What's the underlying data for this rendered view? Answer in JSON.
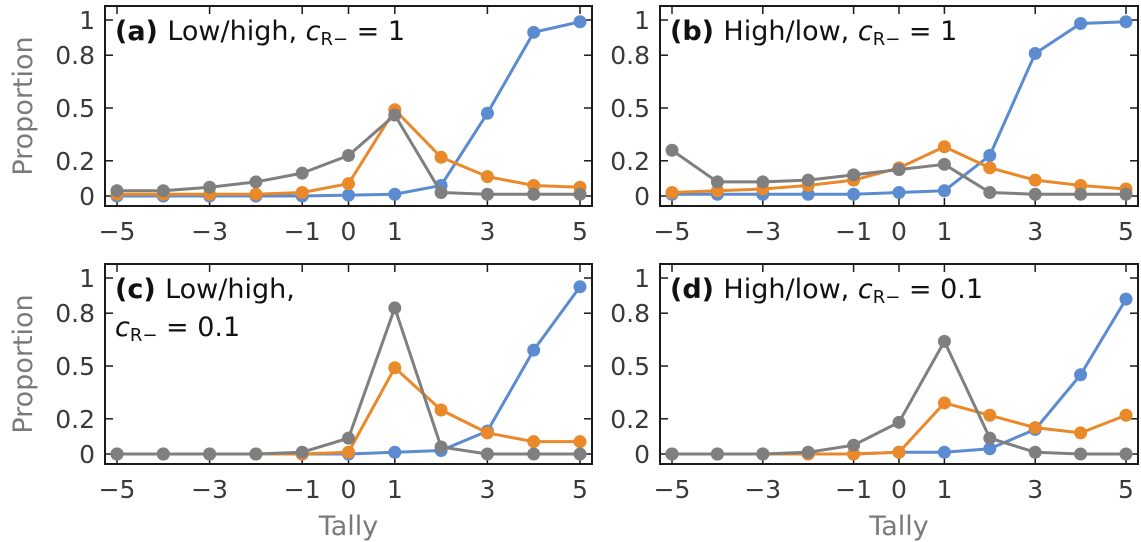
{
  "colors": {
    "blue": "#5b8bd0",
    "orange": "#e9892a",
    "gray": "#7f7f7f"
  },
  "chart_data": [
    {
      "type": "line",
      "title_tag": "(a)",
      "title_text": "Low/high, ",
      "title_sym": "c",
      "title_sub": "R−",
      "title_eq": " = 1",
      "title_line2": "",
      "x": [
        -5,
        -4,
        -3,
        -2,
        -1,
        0,
        1,
        2,
        3,
        4,
        5
      ],
      "xticks": [
        -5,
        -3,
        -1,
        0,
        1,
        3,
        5
      ],
      "xtick_labels": [
        "−5",
        "−3",
        "−1",
        "0",
        "1",
        "3",
        "5"
      ],
      "yticks": [
        0,
        0.2,
        0.5,
        0.8,
        1
      ],
      "ytick_labels": [
        "0",
        "0.2",
        "0.5",
        "0.8",
        "1"
      ],
      "ylim": [
        0,
        1
      ],
      "xlabel": "",
      "ylabel": "Proportion",
      "series": [
        {
          "color": "blue",
          "values": [
            0,
            0,
            0,
            0,
            0,
            0.005,
            0.01,
            0.06,
            0.47,
            0.93,
            0.99
          ]
        },
        {
          "color": "orange",
          "values": [
            0.01,
            0.01,
            0.01,
            0.01,
            0.02,
            0.07,
            0.49,
            0.22,
            0.11,
            0.06,
            0.05
          ]
        },
        {
          "color": "gray",
          "values": [
            0.03,
            0.03,
            0.05,
            0.08,
            0.13,
            0.23,
            0.46,
            0.02,
            0.01,
            0.01,
            0.01
          ]
        }
      ]
    },
    {
      "type": "line",
      "title_tag": "(b)",
      "title_text": "High/low, ",
      "title_sym": "c",
      "title_sub": "R−",
      "title_eq": " = 1",
      "title_line2": "",
      "x": [
        -5,
        -4,
        -3,
        -2,
        -1,
        0,
        1,
        2,
        3,
        4,
        5
      ],
      "xticks": [
        -5,
        -3,
        -1,
        0,
        1,
        3,
        5
      ],
      "xtick_labels": [
        "−5",
        "−3",
        "−1",
        "0",
        "1",
        "3",
        "5"
      ],
      "yticks": [
        0,
        0.2,
        0.5,
        0.8,
        1
      ],
      "ytick_labels": [
        "0",
        "0.2",
        "0.5",
        "0.8",
        "1"
      ],
      "ylim": [
        0,
        1
      ],
      "xlabel": "",
      "ylabel": "",
      "series": [
        {
          "color": "blue",
          "values": [
            0.01,
            0.01,
            0.01,
            0.01,
            0.01,
            0.02,
            0.03,
            0.23,
            0.81,
            0.98,
            0.99
          ]
        },
        {
          "color": "orange",
          "values": [
            0.02,
            0.03,
            0.04,
            0.06,
            0.09,
            0.16,
            0.28,
            0.16,
            0.09,
            0.06,
            0.04
          ]
        },
        {
          "color": "gray",
          "values": [
            0.26,
            0.08,
            0.08,
            0.09,
            0.12,
            0.15,
            0.18,
            0.02,
            0.01,
            0.01,
            0.01
          ]
        }
      ]
    },
    {
      "type": "line",
      "title_tag": "(c)",
      "title_text": "Low/high,",
      "title_sym": "",
      "title_sub": "",
      "title_eq": "",
      "title_line2_sym": "c",
      "title_line2_sub": "R−",
      "title_line2": " = 0.1",
      "x": [
        -5,
        -4,
        -3,
        -2,
        -1,
        0,
        1,
        2,
        3,
        4,
        5
      ],
      "xticks": [
        -5,
        -3,
        -1,
        0,
        1,
        3,
        5
      ],
      "xtick_labels": [
        "−5",
        "−3",
        "−1",
        "0",
        "1",
        "3",
        "5"
      ],
      "yticks": [
        0,
        0.2,
        0.5,
        0.8,
        1
      ],
      "ytick_labels": [
        "0",
        "0.2",
        "0.5",
        "0.8",
        "1"
      ],
      "ylim": [
        0,
        1
      ],
      "xlabel": "Tally",
      "ylabel": "Proportion",
      "series": [
        {
          "color": "blue",
          "values": [
            0,
            0,
            0,
            0,
            0,
            0,
            0.01,
            0.02,
            0.13,
            0.59,
            0.95
          ]
        },
        {
          "color": "orange",
          "values": [
            0,
            0,
            0,
            0,
            0,
            0.01,
            0.49,
            0.25,
            0.12,
            0.07,
            0.07
          ]
        },
        {
          "color": "gray",
          "values": [
            0,
            0,
            0,
            0,
            0.01,
            0.09,
            0.83,
            0.04,
            0,
            0,
            0
          ]
        }
      ]
    },
    {
      "type": "line",
      "title_tag": "(d)",
      "title_text": "High/low, ",
      "title_sym": "c",
      "title_sub": "R−",
      "title_eq": " = 0.1",
      "title_line2": "",
      "x": [
        -5,
        -4,
        -3,
        -2,
        -1,
        0,
        1,
        2,
        3,
        4,
        5
      ],
      "xticks": [
        -5,
        -3,
        -1,
        0,
        1,
        3,
        5
      ],
      "xtick_labels": [
        "−5",
        "−3",
        "−1",
        "0",
        "1",
        "3",
        "5"
      ],
      "yticks": [
        0,
        0.2,
        0.5,
        0.8,
        1
      ],
      "ytick_labels": [
        "0",
        "0.2",
        "0.5",
        "0.8",
        "1"
      ],
      "ylim": [
        0,
        1
      ],
      "xlabel": "Tally",
      "ylabel": "",
      "series": [
        {
          "color": "blue",
          "values": [
            0,
            0,
            0,
            0,
            0,
            0.01,
            0.01,
            0.03,
            0.14,
            0.45,
            0.88
          ]
        },
        {
          "color": "orange",
          "values": [
            0,
            0,
            0,
            0,
            0,
            0.01,
            0.29,
            0.22,
            0.15,
            0.12,
            0.22
          ]
        },
        {
          "color": "gray",
          "values": [
            0,
            0,
            0,
            0.01,
            0.05,
            0.18,
            0.64,
            0.09,
            0.01,
            0,
            0
          ]
        }
      ]
    }
  ]
}
